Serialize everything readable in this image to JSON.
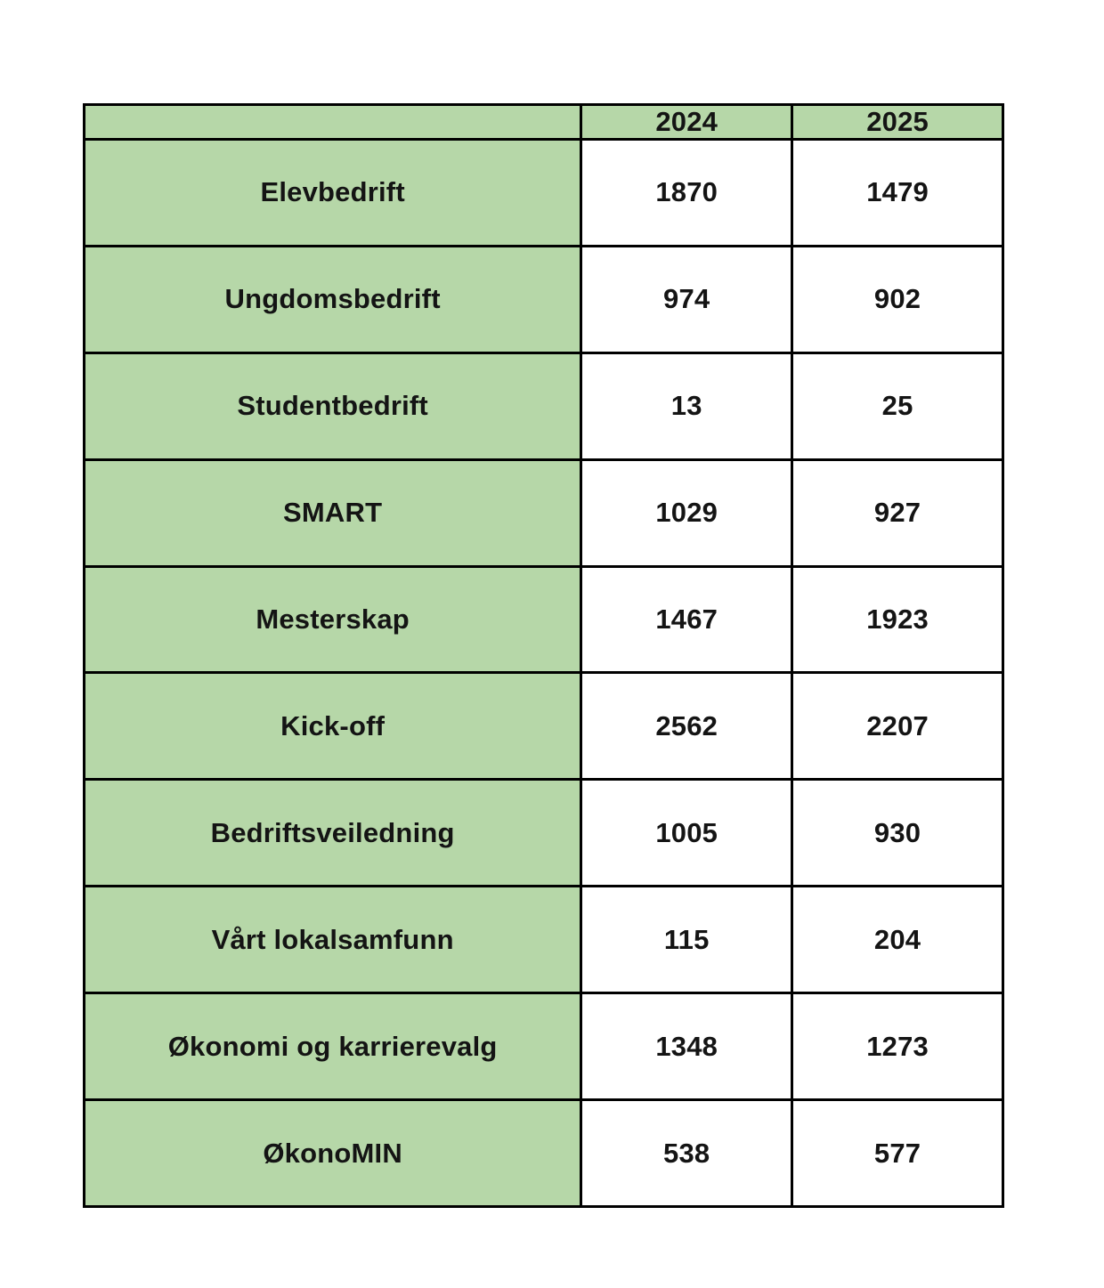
{
  "table": {
    "header": {
      "col0": "",
      "col1": "2024",
      "col2": "2025"
    },
    "rows": [
      {
        "label": "Elevbedrift",
        "y2024": "1870",
        "y2025": "1479"
      },
      {
        "label": "Ungdomsbedrift",
        "y2024": "974",
        "y2025": "902"
      },
      {
        "label": "Studentbedrift",
        "y2024": "13",
        "y2025": "25"
      },
      {
        "label": "SMART",
        "y2024": "1029",
        "y2025": "927"
      },
      {
        "label": "Mesterskap",
        "y2024": "1467",
        "y2025": "1923"
      },
      {
        "label": "Kick-off",
        "y2024": "2562",
        "y2025": "2207"
      },
      {
        "label": "Bedriftsveiledning",
        "y2024": "1005",
        "y2025": "930"
      },
      {
        "label": "Vårt lokalsamfunn",
        "y2024": "115",
        "y2025": "204"
      },
      {
        "label": "Økonomi og karrierevalg",
        "y2024": "1348",
        "y2025": "1273"
      },
      {
        "label": "ØkonoMIN",
        "y2024": "538",
        "y2025": "577"
      }
    ]
  },
  "chart_data": {
    "type": "table",
    "columns": [
      "",
      "2024",
      "2025"
    ],
    "categories": [
      "Elevbedrift",
      "Ungdomsbedrift",
      "Studentbedrift",
      "SMART",
      "Mesterskap",
      "Kick-off",
      "Bedriftsveiledning",
      "Vårt lokalsamfunn",
      "Økonomi og karrierevalg",
      "ØkonoMIN"
    ],
    "series": [
      {
        "name": "2024",
        "values": [
          1870,
          974,
          13,
          1029,
          1467,
          2562,
          1005,
          115,
          1348,
          538
        ]
      },
      {
        "name": "2025",
        "values": [
          1479,
          902,
          25,
          927,
          1923,
          2207,
          930,
          204,
          1273,
          577
        ]
      }
    ],
    "title": "",
    "xlabel": "",
    "ylabel": "",
    "layout_hints": {
      "header_row_background": "#b6d7a8",
      "label_column_background": "#b6d7a8",
      "series_2024_text_color": "#b0b0b0",
      "series_2025_text_color": "#141414",
      "grid_border_color": "#000000"
    }
  },
  "colors": {
    "header_green": "#b6d7a8",
    "muted_value_gray": "#b0b0b0",
    "text_black": "#141414",
    "border_black": "#000000",
    "page_background": "#ffffff"
  }
}
